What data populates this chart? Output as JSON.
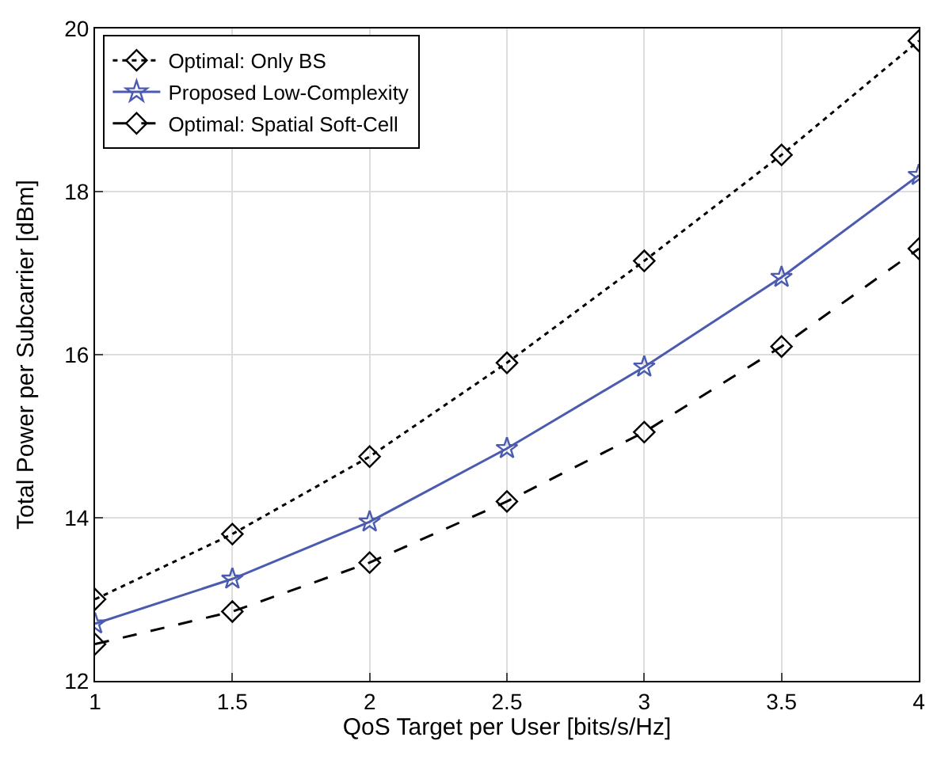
{
  "chart_data": {
    "type": "line",
    "xlabel": "QoS Target per User [bits/s/Hz]",
    "ylabel": "Total Power per Subcarrier [dBm]",
    "x": [
      1,
      1.5,
      2,
      2.5,
      3,
      3.5,
      4
    ],
    "series": [
      {
        "name": "Optimal: Only BS",
        "color": "#000000",
        "marker": "diamond",
        "line_style": "dotted",
        "values": [
          13.0,
          13.8,
          14.75,
          15.9,
          17.15,
          18.45,
          19.85
        ]
      },
      {
        "name": "Proposed Low-Complexity",
        "color": "#4a5bb0",
        "marker": "star",
        "line_style": "solid",
        "values": [
          12.7,
          13.25,
          13.95,
          14.85,
          15.85,
          16.95,
          18.2
        ]
      },
      {
        "name": "Optimal: Spatial Soft-Cell",
        "color": "#000000",
        "marker": "diamond",
        "line_style": "dashed",
        "values": [
          12.45,
          12.85,
          13.45,
          14.2,
          15.05,
          16.1,
          17.3
        ]
      }
    ],
    "xlim": [
      1,
      4
    ],
    "xticks": [
      1,
      1.5,
      2,
      2.5,
      3,
      3.5,
      4
    ],
    "ylim": [
      12,
      20
    ],
    "yticks": [
      12,
      14,
      16,
      18,
      20
    ],
    "grid": true,
    "legend": "top left"
  }
}
